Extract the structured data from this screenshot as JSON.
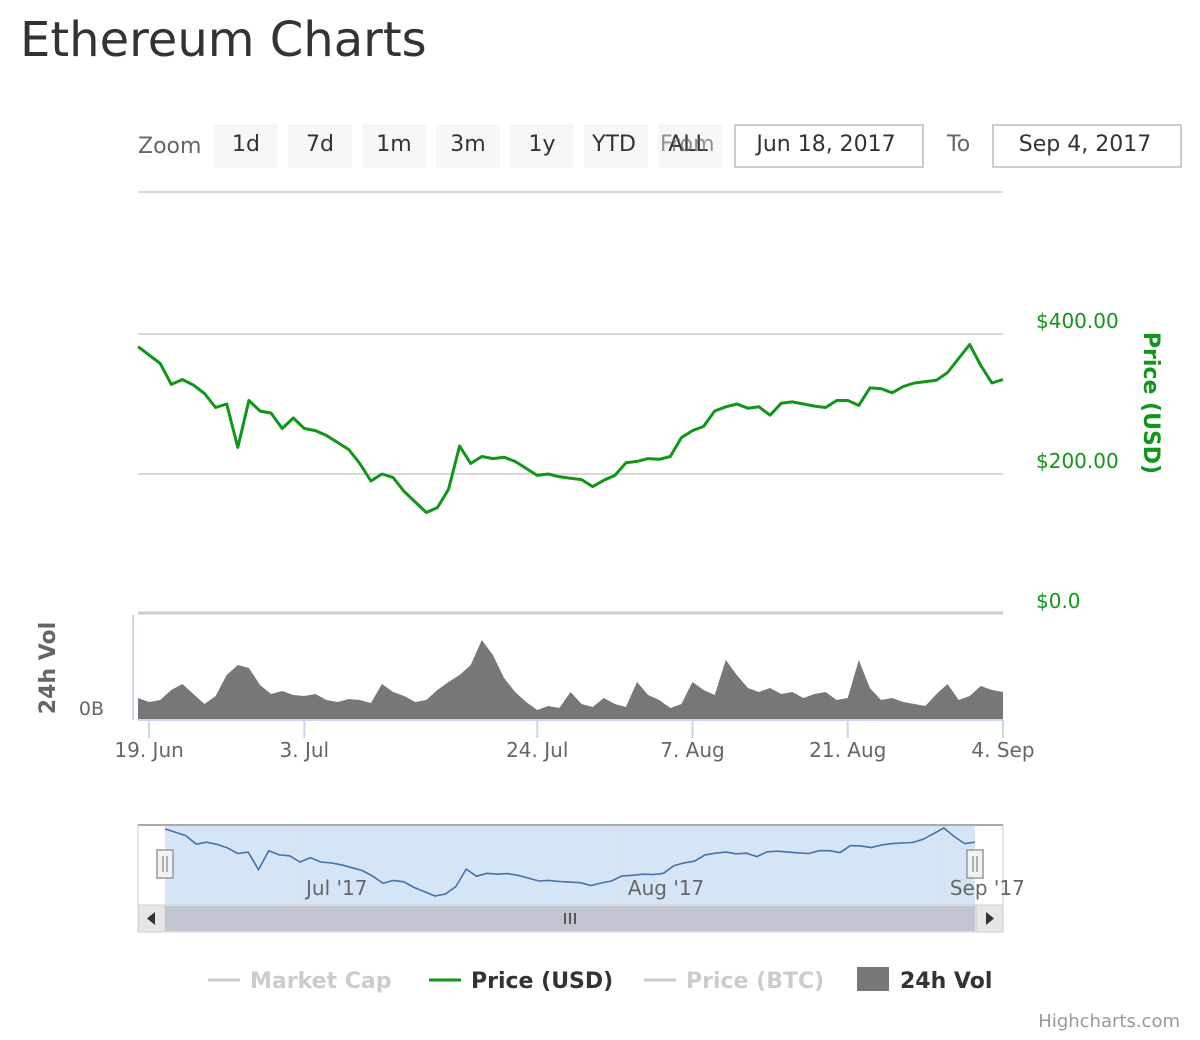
{
  "title": "Ethereum Charts",
  "range_selector": {
    "zoom_label": "Zoom",
    "buttons": [
      "1d",
      "7d",
      "1m",
      "3m",
      "1y",
      "YTD",
      "ALL"
    ],
    "from_label": "From",
    "from_value": "Jun 18, 2017",
    "to_label": "To",
    "to_value": "Sep 4, 2017"
  },
  "credit": "Highcharts.com",
  "colors": {
    "price_line": "#109618",
    "volume": "#777777",
    "navigator_line": "#4572a7",
    "navigator_mask": "#cfe1f5",
    "grid": "#d8d8d8",
    "disabled_legend": "#cccccc"
  },
  "chart_data": {
    "type": "line",
    "x_start": "2017-06-18",
    "x_end": "2017-09-04",
    "price_axis": {
      "label": "Price (USD)",
      "ticks": [
        "$0.0",
        "$200.00",
        "$400.00"
      ],
      "tick_values": [
        0,
        200,
        400
      ],
      "range": [
        0,
        600
      ]
    },
    "volume_axis": {
      "label": "24h Vol",
      "ticks": [
        "0B"
      ]
    },
    "x_ticks": [
      {
        "date": "2017-06-19",
        "label": "19. Jun"
      },
      {
        "date": "2017-07-03",
        "label": "3. Jul"
      },
      {
        "date": "2017-07-24",
        "label": "24. Jul"
      },
      {
        "date": "2017-08-07",
        "label": "7. Aug"
      },
      {
        "date": "2017-08-21",
        "label": "21. Aug"
      },
      {
        "date": "2017-09-04",
        "label": "4. Sep"
      }
    ],
    "navigator_ticks": [
      {
        "date": "2017-07-01",
        "label": "Jul '17"
      },
      {
        "date": "2017-08-01",
        "label": "Aug '17"
      },
      {
        "date": "2017-09-01",
        "label": "Sep '17"
      }
    ],
    "series": [
      {
        "name": "Price (USD)",
        "type": "line",
        "x": [
          "2017-06-18",
          "2017-06-19",
          "2017-06-20",
          "2017-06-21",
          "2017-06-22",
          "2017-06-23",
          "2017-06-24",
          "2017-06-25",
          "2017-06-26",
          "2017-06-27",
          "2017-06-28",
          "2017-06-29",
          "2017-06-30",
          "2017-07-01",
          "2017-07-02",
          "2017-07-03",
          "2017-07-04",
          "2017-07-05",
          "2017-07-06",
          "2017-07-07",
          "2017-07-08",
          "2017-07-09",
          "2017-07-10",
          "2017-07-11",
          "2017-07-12",
          "2017-07-13",
          "2017-07-14",
          "2017-07-15",
          "2017-07-16",
          "2017-07-17",
          "2017-07-18",
          "2017-07-19",
          "2017-07-20",
          "2017-07-21",
          "2017-07-22",
          "2017-07-23",
          "2017-07-24",
          "2017-07-25",
          "2017-07-26",
          "2017-07-27",
          "2017-07-28",
          "2017-07-29",
          "2017-07-30",
          "2017-07-31",
          "2017-08-01",
          "2017-08-02",
          "2017-08-03",
          "2017-08-04",
          "2017-08-05",
          "2017-08-06",
          "2017-08-07",
          "2017-08-08",
          "2017-08-09",
          "2017-08-10",
          "2017-08-11",
          "2017-08-12",
          "2017-08-13",
          "2017-08-14",
          "2017-08-15",
          "2017-08-16",
          "2017-08-17",
          "2017-08-18",
          "2017-08-19",
          "2017-08-20",
          "2017-08-21",
          "2017-08-22",
          "2017-08-23",
          "2017-08-24",
          "2017-08-25",
          "2017-08-26",
          "2017-08-27",
          "2017-08-28",
          "2017-08-29",
          "2017-08-30",
          "2017-08-31",
          "2017-09-01",
          "2017-09-02",
          "2017-09-03",
          "2017-09-04"
        ],
        "values": [
          382,
          370,
          358,
          328,
          335,
          327,
          315,
          295,
          300,
          238,
          305,
          290,
          287,
          265,
          280,
          265,
          262,
          255,
          245,
          235,
          215,
          190,
          200,
          195,
          175,
          160,
          145,
          152,
          178,
          240,
          215,
          225,
          222,
          224,
          218,
          208,
          198,
          200,
          196,
          194,
          192,
          182,
          191,
          198,
          216,
          218,
          222,
          221,
          225,
          252,
          262,
          268,
          290,
          296,
          300,
          294,
          296,
          284,
          301,
          303,
          300,
          297,
          295,
          305,
          305,
          298,
          323,
          322,
          316,
          325,
          330,
          332,
          334,
          345,
          365,
          385,
          355,
          330,
          335
        ]
      },
      {
        "name": "24h Vol",
        "type": "area",
        "x": [
          "2017-06-18",
          "2017-06-19",
          "2017-06-20",
          "2017-06-21",
          "2017-06-22",
          "2017-06-23",
          "2017-06-24",
          "2017-06-25",
          "2017-06-26",
          "2017-06-27",
          "2017-06-28",
          "2017-06-29",
          "2017-06-30",
          "2017-07-01",
          "2017-07-02",
          "2017-07-03",
          "2017-07-04",
          "2017-07-05",
          "2017-07-06",
          "2017-07-07",
          "2017-07-08",
          "2017-07-09",
          "2017-07-10",
          "2017-07-11",
          "2017-07-12",
          "2017-07-13",
          "2017-07-14",
          "2017-07-15",
          "2017-07-16",
          "2017-07-17",
          "2017-07-18",
          "2017-07-19",
          "2017-07-20",
          "2017-07-21",
          "2017-07-22",
          "2017-07-23",
          "2017-07-24",
          "2017-07-25",
          "2017-07-26",
          "2017-07-27",
          "2017-07-28",
          "2017-07-29",
          "2017-07-30",
          "2017-07-31",
          "2017-08-01",
          "2017-08-02",
          "2017-08-03",
          "2017-08-04",
          "2017-08-05",
          "2017-08-06",
          "2017-08-07",
          "2017-08-08",
          "2017-08-09",
          "2017-08-10",
          "2017-08-11",
          "2017-08-12",
          "2017-08-13",
          "2017-08-14",
          "2017-08-15",
          "2017-08-16",
          "2017-08-17",
          "2017-08-18",
          "2017-08-19",
          "2017-08-20",
          "2017-08-21",
          "2017-08-22",
          "2017-08-23",
          "2017-08-24",
          "2017-08-25",
          "2017-08-26",
          "2017-08-27",
          "2017-08-28",
          "2017-08-29",
          "2017-08-30",
          "2017-08-31",
          "2017-09-01",
          "2017-09-02",
          "2017-09-03",
          "2017-09-04"
        ],
        "values": [
          0.22,
          0.18,
          0.2,
          0.3,
          0.36,
          0.26,
          0.16,
          0.24,
          0.45,
          0.55,
          0.52,
          0.35,
          0.26,
          0.29,
          0.25,
          0.24,
          0.26,
          0.2,
          0.18,
          0.21,
          0.2,
          0.17,
          0.36,
          0.28,
          0.24,
          0.18,
          0.2,
          0.3,
          0.38,
          0.45,
          0.55,
          0.8,
          0.65,
          0.42,
          0.28,
          0.18,
          0.1,
          0.14,
          0.12,
          0.28,
          0.16,
          0.13,
          0.22,
          0.16,
          0.13,
          0.38,
          0.25,
          0.2,
          0.12,
          0.16,
          0.38,
          0.3,
          0.25,
          0.6,
          0.45,
          0.32,
          0.28,
          0.32,
          0.26,
          0.28,
          0.22,
          0.26,
          0.28,
          0.2,
          0.22,
          0.6,
          0.32,
          0.2,
          0.22,
          0.18,
          0.16,
          0.14,
          0.26,
          0.36,
          0.2,
          0.24,
          0.34,
          0.3,
          0.28
        ]
      }
    ],
    "legend": {
      "placement": "bottom",
      "items": [
        {
          "name": "Market Cap",
          "visible": false,
          "symbol": "line"
        },
        {
          "name": "Price (USD)",
          "visible": true,
          "symbol": "line"
        },
        {
          "name": "Price (BTC)",
          "visible": false,
          "symbol": "line"
        },
        {
          "name": "24h Vol",
          "visible": true,
          "symbol": "rect"
        }
      ]
    }
  }
}
